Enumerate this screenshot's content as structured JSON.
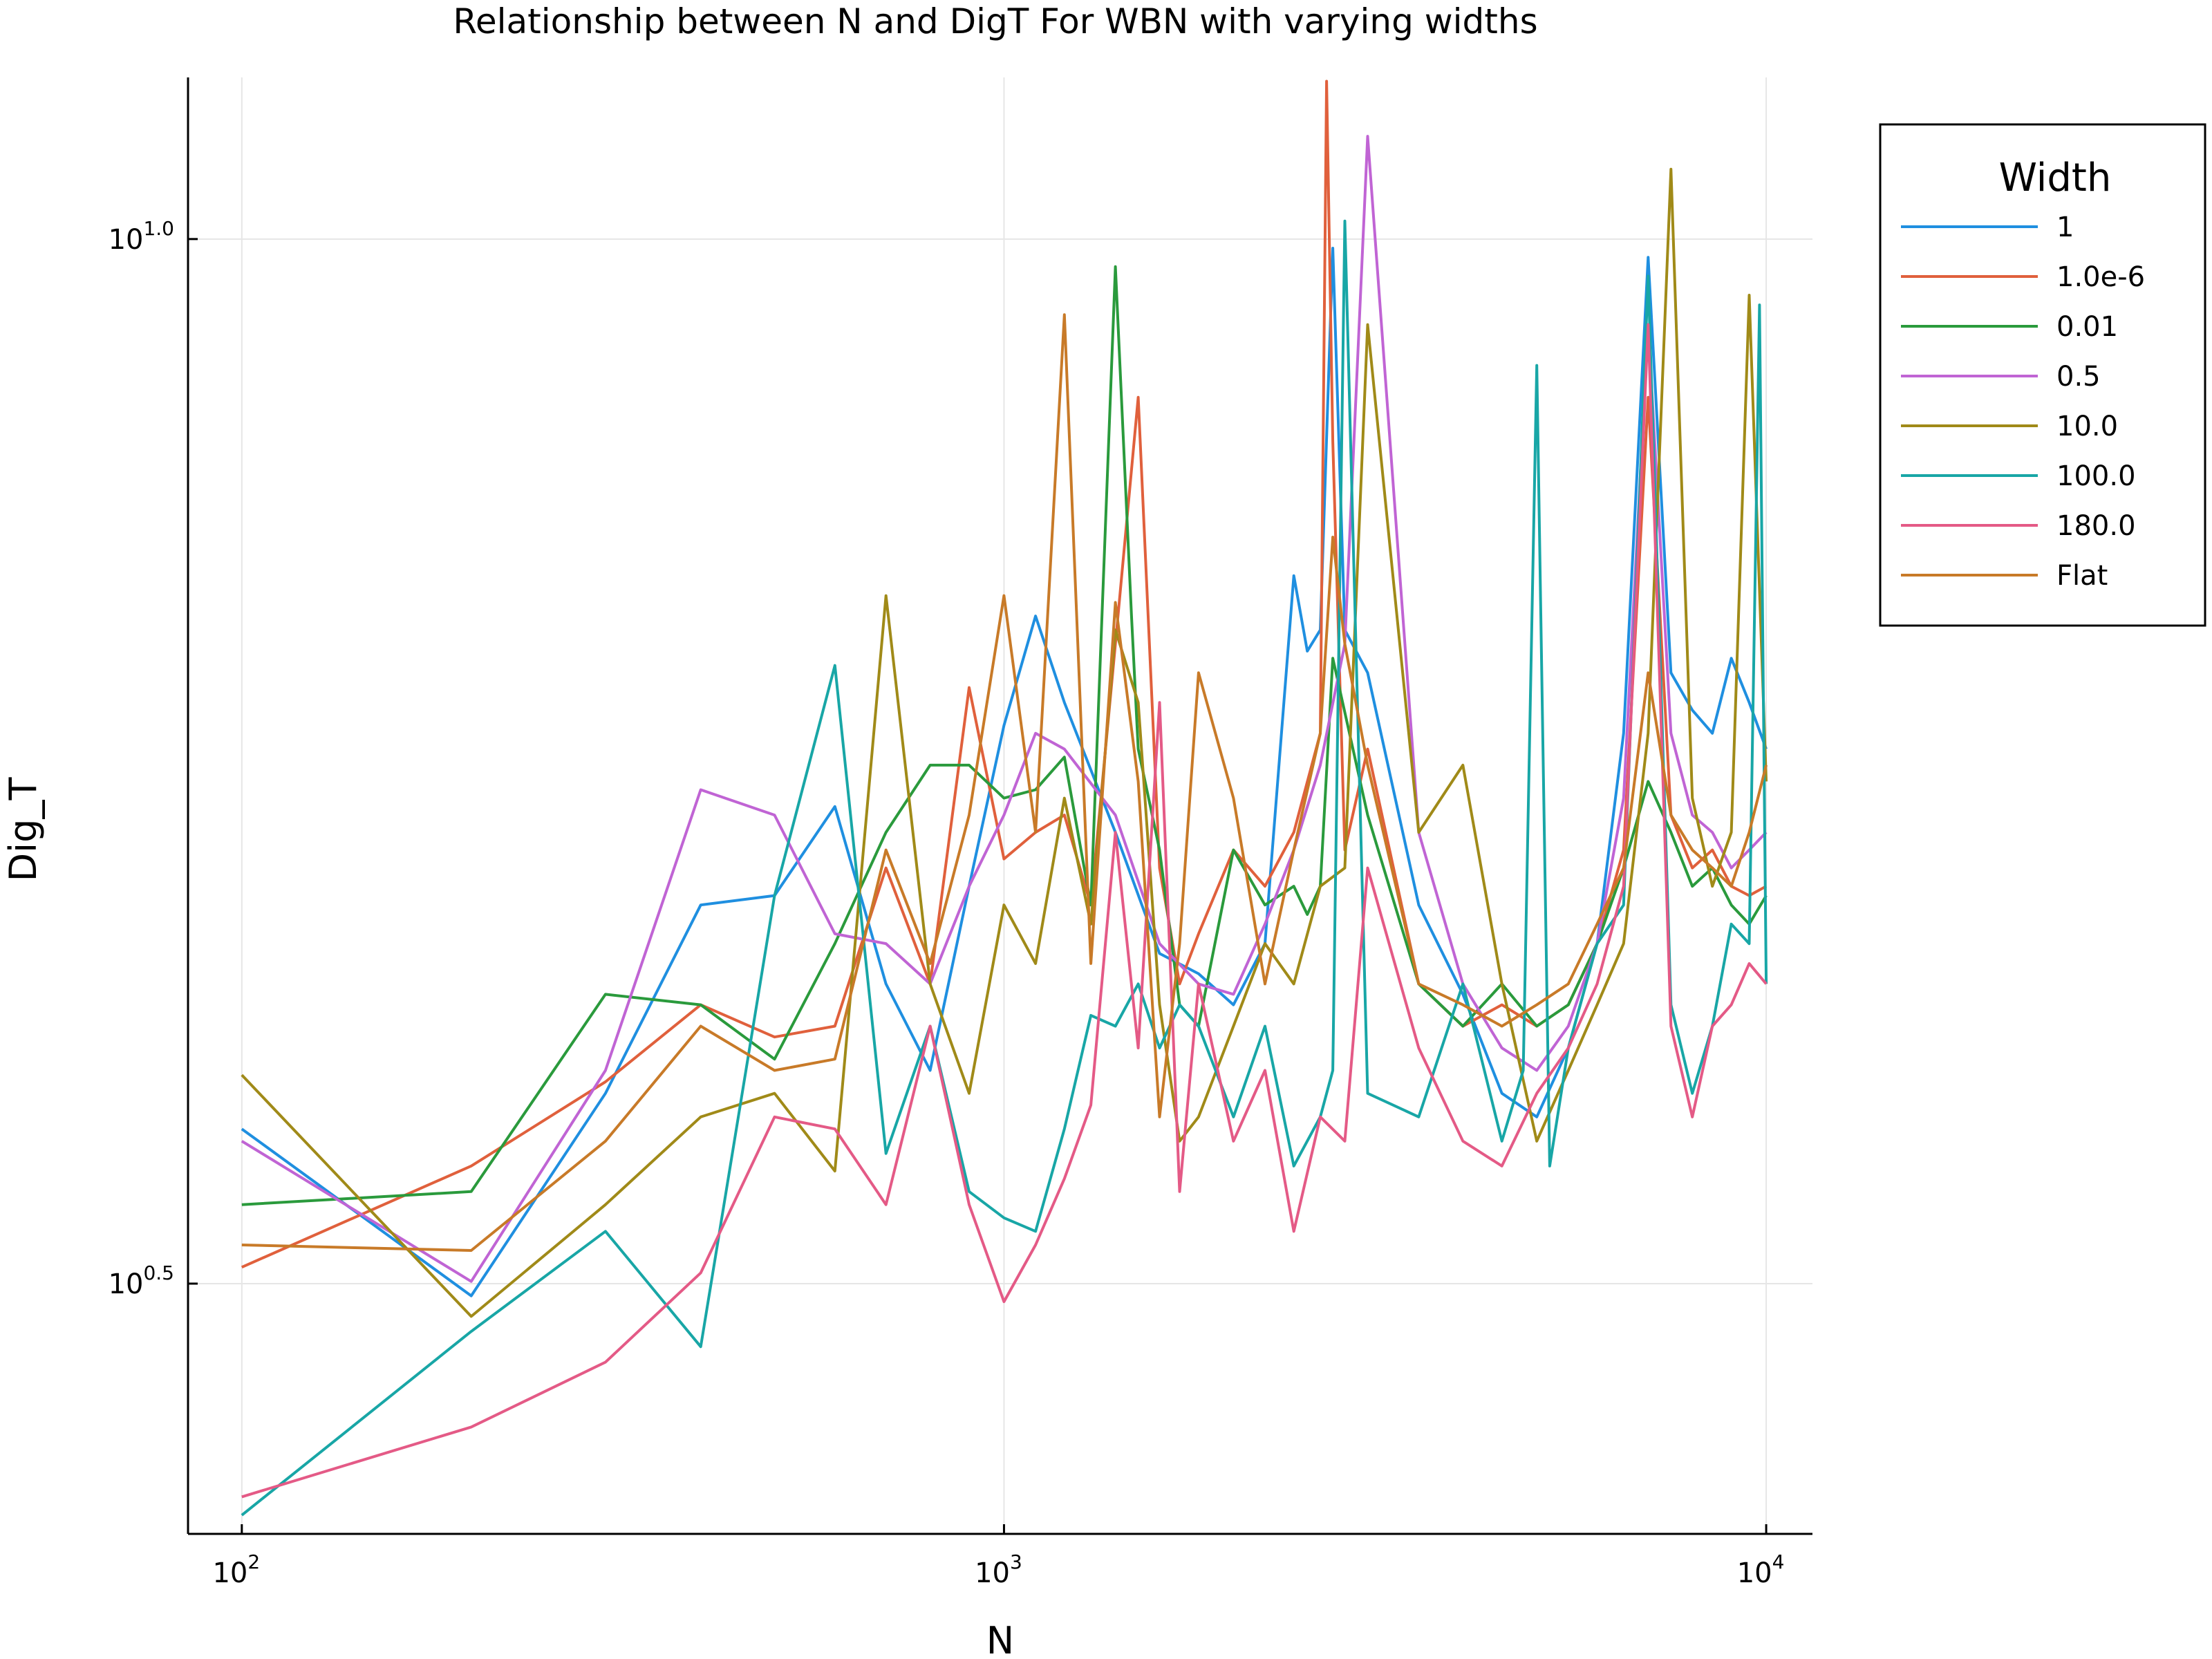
{
  "chart_data": {
    "type": "line",
    "title": "Relationship between N and DigT For WBN with varying widths",
    "xlabel": "N",
    "ylabel": "Dig_T",
    "xscale": "log10",
    "yscale": "log10",
    "xlim": [
      85,
      11500
    ],
    "ylim": [
      2.4,
      11.95
    ],
    "xticks": [
      {
        "base": "10",
        "exp": "2",
        "value": 100
      },
      {
        "base": "10",
        "exp": "3",
        "value": 1000
      },
      {
        "base": "10",
        "exp": "4",
        "value": 10000
      }
    ],
    "yticks": [
      {
        "base": "10",
        "exp": "0.5",
        "value": 3.1623
      },
      {
        "base": "10",
        "exp": "1.0",
        "value": 10.0
      }
    ],
    "grid": true,
    "legend": {
      "title": "Width",
      "position": "top-right"
    },
    "series": [
      {
        "name": "1",
        "color": "#1f8fe0",
        "x": [
          100,
          200,
          300,
          400,
          500,
          600,
          700,
          800,
          900,
          1000,
          1100,
          1200,
          1400,
          1600,
          1800,
          2000,
          2200,
          2400,
          2500,
          2600,
          2700,
          2800,
          3000,
          3500,
          4000,
          4500,
          5000,
          5500,
          6000,
          6500,
          7000,
          7500,
          8000,
          8500,
          9000,
          9500,
          10000
        ],
        "y": [
          3.75,
          3.12,
          3.9,
          4.8,
          4.85,
          5.35,
          4.4,
          4.0,
          4.9,
          5.85,
          6.6,
          6.0,
          5.2,
          4.55,
          4.45,
          4.3,
          4.6,
          6.9,
          6.35,
          6.5,
          9.9,
          6.5,
          6.2,
          4.8,
          4.35,
          3.9,
          3.8,
          4.1,
          4.6,
          5.8,
          9.8,
          6.2,
          5.95,
          5.8,
          6.3,
          6.0,
          5.7
        ]
      },
      {
        "name": "1.0e-6",
        "color": "#e0603c",
        "x": [
          100,
          200,
          300,
          400,
          500,
          600,
          700,
          800,
          900,
          1000,
          1100,
          1200,
          1300,
          1400,
          1500,
          1600,
          1700,
          1800,
          2000,
          2200,
          2400,
          2600,
          2650,
          2700,
          2800,
          3000,
          3500,
          4000,
          4500,
          5000,
          5500,
          6000,
          6500,
          7000,
          7500,
          8000,
          8500,
          9000,
          9500,
          10000
        ],
        "y": [
          3.22,
          3.6,
          3.95,
          4.3,
          4.15,
          4.2,
          5.0,
          4.4,
          6.1,
          5.05,
          5.2,
          5.3,
          4.8,
          6.4,
          8.4,
          5.0,
          4.4,
          4.65,
          5.1,
          4.9,
          5.2,
          5.8,
          11.9,
          8.0,
          5.1,
          5.7,
          4.4,
          4.2,
          4.3,
          4.2,
          4.3,
          4.6,
          5.1,
          8.4,
          5.3,
          5.0,
          5.1,
          4.9,
          4.85,
          4.9
        ]
      },
      {
        "name": "0.01",
        "color": "#2a9a3c",
        "x": [
          100,
          200,
          300,
          400,
          500,
          600,
          700,
          800,
          900,
          1000,
          1100,
          1200,
          1300,
          1400,
          1470,
          1500,
          1600,
          1700,
          1800,
          2000,
          2200,
          2400,
          2500,
          2600,
          2700,
          3000,
          3500,
          4000,
          4500,
          5000,
          5500,
          6000,
          6500,
          7000,
          7500,
          8000,
          8500,
          9000,
          9500,
          10000
        ],
        "y": [
          3.45,
          3.5,
          4.35,
          4.3,
          4.05,
          4.6,
          5.2,
          5.6,
          5.6,
          5.4,
          5.45,
          5.65,
          4.8,
          9.7,
          6.6,
          5.7,
          5.1,
          4.3,
          4.2,
          5.1,
          4.8,
          4.9,
          4.75,
          4.9,
          6.3,
          5.3,
          4.4,
          4.2,
          4.4,
          4.2,
          4.3,
          4.6,
          5.0,
          5.5,
          5.2,
          4.9,
          5.0,
          4.8,
          4.7,
          4.85
        ]
      },
      {
        "name": "0.5",
        "color": "#c064d4",
        "x": [
          100,
          200,
          300,
          400,
          500,
          600,
          700,
          800,
          900,
          1000,
          1100,
          1200,
          1400,
          1600,
          1800,
          2000,
          2200,
          2400,
          2600,
          2800,
          3000,
          3500,
          4000,
          4500,
          5000,
          5500,
          6000,
          6500,
          7000,
          7500,
          8000,
          8500,
          9000,
          9500,
          10000
        ],
        "y": [
          3.7,
          3.17,
          4.0,
          5.45,
          5.3,
          4.65,
          4.6,
          4.4,
          4.9,
          5.3,
          5.8,
          5.7,
          5.3,
          4.6,
          4.4,
          4.35,
          4.7,
          5.1,
          5.6,
          6.4,
          11.2,
          5.2,
          4.4,
          4.1,
          4.0,
          4.2,
          4.6,
          5.4,
          9.1,
          5.8,
          5.3,
          5.2,
          5.0,
          5.1,
          5.2
        ]
      },
      {
        "name": "10.0",
        "color": "#a08a18",
        "x": [
          100,
          200,
          300,
          400,
          500,
          600,
          700,
          800,
          900,
          1000,
          1100,
          1200,
          1300,
          1400,
          1500,
          1600,
          1700,
          1800,
          2000,
          2200,
          2400,
          2600,
          2800,
          3000,
          3500,
          4000,
          4500,
          5000,
          5500,
          6000,
          6500,
          7000,
          7500,
          8000,
          8500,
          9000,
          9500,
          10000
        ],
        "y": [
          3.98,
          3.05,
          3.45,
          3.8,
          3.9,
          3.58,
          6.75,
          4.4,
          3.9,
          4.8,
          4.5,
          5.4,
          4.7,
          6.5,
          6.0,
          4.3,
          3.7,
          3.8,
          4.2,
          4.6,
          4.4,
          4.9,
          5.0,
          9.1,
          5.2,
          5.6,
          4.4,
          3.7,
          4.0,
          4.3,
          4.6,
          5.8,
          10.8,
          5.4,
          4.9,
          5.2,
          9.4,
          5.5
        ]
      },
      {
        "name": "100.0",
        "color": "#18a6a6",
        "x": [
          100,
          200,
          300,
          400,
          500,
          600,
          700,
          800,
          900,
          1000,
          1100,
          1200,
          1300,
          1400,
          1500,
          1600,
          1700,
          1800,
          2000,
          2200,
          2400,
          2600,
          2700,
          2800,
          3000,
          3500,
          4000,
          4500,
          4800,
          5000,
          5200,
          5500,
          6000,
          6500,
          7000,
          7500,
          8000,
          8500,
          9000,
          9500,
          9800,
          10000
        ],
        "y": [
          2.45,
          3.0,
          3.35,
          2.95,
          4.85,
          6.25,
          3.65,
          4.2,
          3.5,
          3.4,
          3.35,
          3.75,
          4.25,
          4.2,
          4.4,
          4.1,
          4.3,
          4.2,
          3.8,
          4.2,
          3.6,
          3.8,
          4.0,
          10.2,
          3.9,
          3.8,
          4.4,
          3.7,
          4.0,
          8.7,
          3.6,
          4.1,
          4.6,
          4.8,
          9.6,
          4.3,
          3.9,
          4.2,
          4.7,
          4.6,
          9.3,
          4.4
        ]
      },
      {
        "name": "180.0",
        "color": "#e45a86",
        "x": [
          100,
          200,
          300,
          400,
          500,
          600,
          700,
          800,
          900,
          1000,
          1100,
          1200,
          1300,
          1400,
          1500,
          1600,
          1700,
          1800,
          2000,
          2200,
          2400,
          2600,
          2800,
          3000,
          3500,
          4000,
          4500,
          5000,
          5500,
          6000,
          6500,
          7000,
          7500,
          8000,
          8500,
          9000,
          9500,
          10000
        ],
        "y": [
          2.5,
          2.7,
          2.9,
          3.2,
          3.8,
          3.75,
          3.45,
          4.2,
          3.45,
          3.1,
          3.3,
          3.55,
          3.85,
          5.2,
          4.1,
          6.0,
          3.5,
          4.4,
          3.7,
          4.0,
          3.35,
          3.8,
          3.7,
          5.0,
          4.1,
          3.7,
          3.6,
          3.9,
          4.1,
          4.4,
          4.9,
          9.1,
          4.2,
          3.8,
          4.2,
          4.3,
          4.5,
          4.4
        ]
      },
      {
        "name": "Flat",
        "color": "#c87a28",
        "x": [
          100,
          200,
          300,
          400,
          500,
          600,
          700,
          800,
          900,
          1000,
          1100,
          1200,
          1300,
          1400,
          1500,
          1600,
          1700,
          1800,
          2000,
          2200,
          2400,
          2600,
          2700,
          2800,
          3000,
          3500,
          4000,
          4500,
          5000,
          5500,
          6000,
          6500,
          7000,
          7500,
          8000,
          8500,
          9000,
          9500,
          10000
        ],
        "y": [
          3.3,
          3.28,
          3.7,
          4.2,
          4.0,
          4.05,
          5.1,
          4.5,
          5.3,
          6.75,
          5.2,
          9.2,
          4.5,
          6.7,
          5.5,
          3.8,
          4.6,
          6.2,
          5.4,
          4.4,
          5.1,
          5.8,
          7.2,
          6.4,
          5.6,
          4.4,
          4.3,
          4.2,
          4.3,
          4.4,
          4.7,
          5.0,
          6.2,
          5.3,
          5.1,
          5.0,
          4.9,
          5.2,
          5.6
        ]
      }
    ]
  }
}
